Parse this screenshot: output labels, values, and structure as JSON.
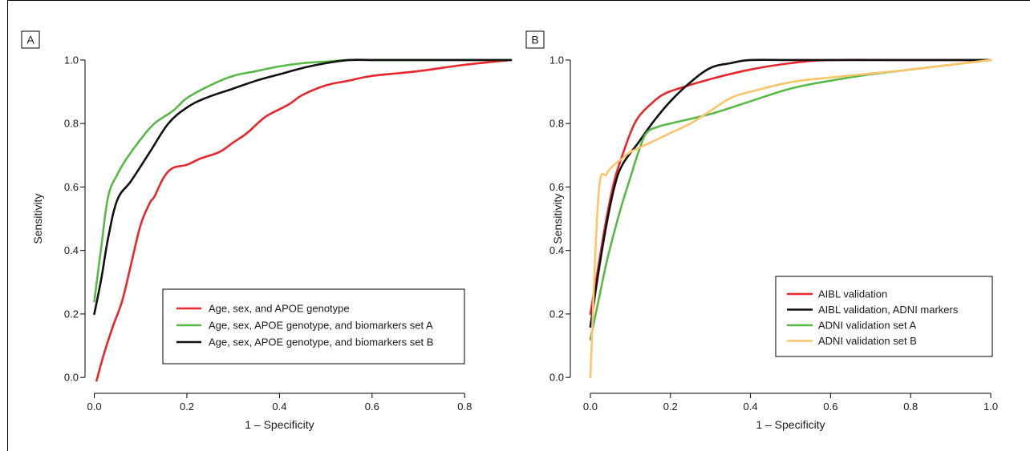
{
  "chart_data": [
    {
      "type": "line",
      "panel_label": "A",
      "xlabel": "1 – Specificity",
      "ylabel": "Sensitivity",
      "xlim": [
        -0.02,
        0.9
      ],
      "ylim": [
        -0.05,
        1.02
      ],
      "xticks": [
        0.0,
        0.2,
        0.4,
        0.6,
        0.8
      ],
      "xtick_labels": [
        "0.0",
        "0.2",
        "0.4",
        "0.6",
        "0.8"
      ],
      "yticks": [
        0.0,
        0.2,
        0.4,
        0.6,
        0.8,
        1.0
      ],
      "ytick_labels": [
        "0.0",
        "0.2",
        "0.4",
        "0.6",
        "0.8",
        "1.0"
      ],
      "grid": false,
      "legend_position": "center-right",
      "series": [
        {
          "name": "Age, sex, and APOE genotype",
          "color": "#e8262c",
          "x": [
            0.005,
            0.02,
            0.04,
            0.06,
            0.08,
            0.1,
            0.12,
            0.13,
            0.15,
            0.17,
            0.2,
            0.23,
            0.27,
            0.3,
            0.33,
            0.36,
            0.38,
            0.42,
            0.45,
            0.5,
            0.55,
            0.6,
            0.7,
            0.8,
            0.9
          ],
          "y": [
            -0.01,
            0.07,
            0.16,
            0.24,
            0.36,
            0.48,
            0.55,
            0.57,
            0.63,
            0.66,
            0.67,
            0.69,
            0.71,
            0.74,
            0.77,
            0.81,
            0.83,
            0.86,
            0.89,
            0.92,
            0.935,
            0.95,
            0.965,
            0.985,
            1.0
          ]
        },
        {
          "name": "Age, sex, APOE genotype, and biomarkers set A",
          "color": "#58b947",
          "x": [
            0.0,
            0.015,
            0.03,
            0.05,
            0.07,
            0.1,
            0.13,
            0.17,
            0.2,
            0.25,
            0.3,
            0.35,
            0.4,
            0.45,
            0.5,
            0.55,
            0.6,
            0.7,
            0.8,
            0.9
          ],
          "y": [
            0.24,
            0.41,
            0.57,
            0.64,
            0.69,
            0.75,
            0.8,
            0.84,
            0.88,
            0.92,
            0.95,
            0.965,
            0.98,
            0.99,
            0.995,
            1.0,
            1.0,
            1.0,
            1.0,
            1.0
          ]
        },
        {
          "name": "Age, sex, APOE genotype, and biomarkers set B",
          "color": "#111111",
          "x": [
            0.0,
            0.015,
            0.03,
            0.05,
            0.08,
            0.12,
            0.16,
            0.2,
            0.24,
            0.3,
            0.35,
            0.4,
            0.45,
            0.5,
            0.55,
            0.6,
            0.7,
            0.8,
            0.9
          ],
          "y": [
            0.2,
            0.31,
            0.44,
            0.56,
            0.62,
            0.71,
            0.8,
            0.85,
            0.88,
            0.91,
            0.935,
            0.955,
            0.975,
            0.99,
            1.0,
            1.0,
            1.0,
            1.0,
            1.0
          ]
        }
      ]
    },
    {
      "type": "line",
      "panel_label": "B",
      "xlabel": "1 – Specificity",
      "ylabel": "Sensitivity",
      "xlim": [
        -0.05,
        1.05
      ],
      "ylim": [
        -0.05,
        1.02
      ],
      "xticks": [
        0.0,
        0.2,
        0.4,
        0.6,
        0.8,
        1.0
      ],
      "xtick_labels": [
        "0.0",
        "0.2",
        "0.4",
        "0.6",
        "0.8",
        "1.0"
      ],
      "yticks": [
        0.0,
        0.2,
        0.4,
        0.6,
        0.8,
        1.0
      ],
      "ytick_labels": [
        "0.0",
        "0.2",
        "0.4",
        "0.6",
        "0.8",
        "1.0"
      ],
      "grid": false,
      "legend_position": "bottom-right",
      "series": [
        {
          "name": "AIBL validation",
          "color": "#e8262c",
          "x": [
            0.0,
            0.02,
            0.04,
            0.06,
            0.08,
            0.1,
            0.12,
            0.15,
            0.18,
            0.22,
            0.3,
            0.4,
            0.5,
            0.6,
            0.8,
            1.0
          ],
          "y": [
            0.2,
            0.35,
            0.5,
            0.62,
            0.7,
            0.77,
            0.82,
            0.86,
            0.89,
            0.91,
            0.94,
            0.97,
            0.99,
            1.0,
            1.0,
            1.0
          ]
        },
        {
          "name": "AIBL validation, ADNI markers",
          "color": "#111111",
          "x": [
            0.0,
            0.02,
            0.04,
            0.06,
            0.08,
            0.12,
            0.16,
            0.2,
            0.25,
            0.3,
            0.35,
            0.4,
            0.5,
            0.6,
            0.8,
            1.0
          ],
          "y": [
            0.16,
            0.33,
            0.48,
            0.6,
            0.67,
            0.74,
            0.81,
            0.87,
            0.93,
            0.975,
            0.99,
            1.0,
            1.0,
            1.0,
            1.0,
            1.0
          ]
        },
        {
          "name": "ADNI validation set A",
          "color": "#58b947",
          "x": [
            0.0,
            0.02,
            0.04,
            0.06,
            0.08,
            0.1,
            0.12,
            0.14,
            0.17,
            0.2,
            0.3,
            0.4,
            0.5,
            0.6,
            0.7,
            0.8,
            0.9,
            1.0
          ],
          "y": [
            0.12,
            0.24,
            0.36,
            0.46,
            0.55,
            0.63,
            0.71,
            0.77,
            0.79,
            0.8,
            0.83,
            0.87,
            0.91,
            0.935,
            0.955,
            0.97,
            0.985,
            1.0
          ]
        },
        {
          "name": "ADNI validation set B",
          "color": "#fdc569",
          "x": [
            0.0,
            0.02,
            0.04,
            0.06,
            0.08,
            0.1,
            0.15,
            0.2,
            0.25,
            0.3,
            0.35,
            0.4,
            0.5,
            0.6,
            0.8,
            1.0
          ],
          "y": [
            0.0,
            0.57,
            0.64,
            0.67,
            0.69,
            0.71,
            0.74,
            0.77,
            0.8,
            0.84,
            0.88,
            0.9,
            0.93,
            0.945,
            0.97,
            1.0
          ]
        }
      ]
    }
  ]
}
